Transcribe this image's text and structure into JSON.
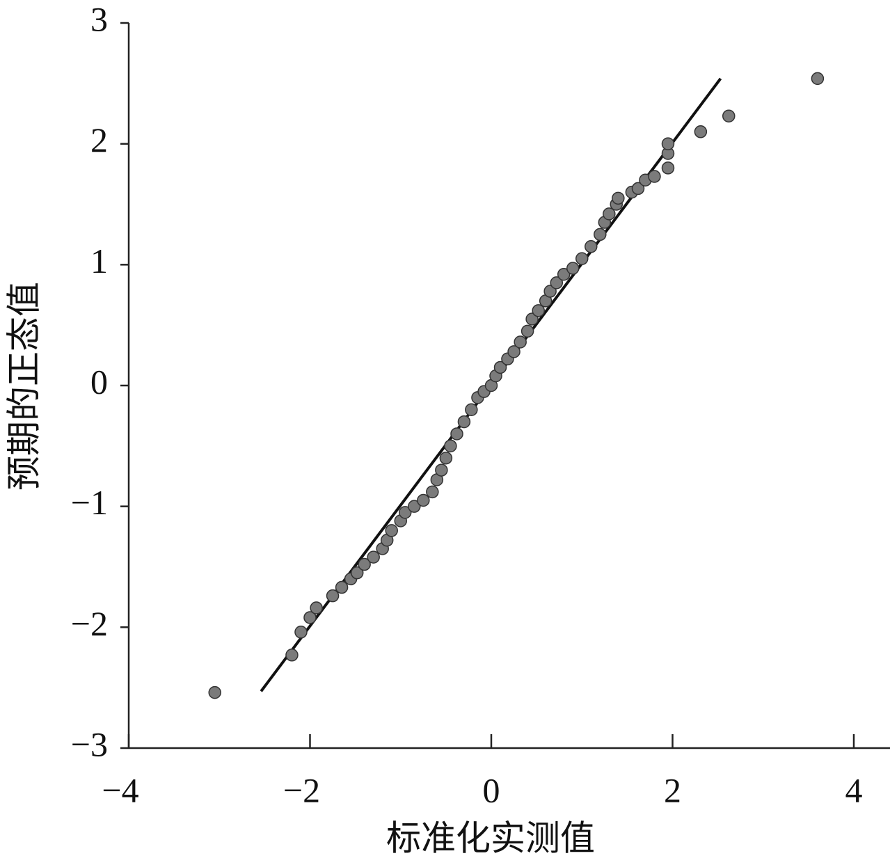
{
  "chart_data": {
    "type": "scatter",
    "x_label": "标准化实测值",
    "y_label": "预期的正态值",
    "xlim": [
      -4,
      4
    ],
    "ylim": [
      -3,
      3
    ],
    "xticks": [
      {
        "value": -4,
        "label": "−4"
      },
      {
        "value": -2,
        "label": "−2"
      },
      0,
      2,
      4
    ],
    "yticks": [
      {
        "value": -3,
        "label": "−3"
      },
      {
        "value": -2,
        "label": "−2"
      },
      {
        "value": -1,
        "label": "−1"
      },
      0,
      1,
      2,
      3
    ],
    "grid": false,
    "color": "#7b7b7b",
    "reference_line": {
      "x": [
        -2.54,
        2.53
      ],
      "y": [
        -2.53,
        2.54
      ],
      "color": "#111111"
    },
    "series": [
      {
        "color": "#7b7b7b",
        "x": [
          -3.05,
          -2.2,
          -2.1,
          -2.0,
          -1.93,
          -1.75,
          -1.65,
          -1.55,
          -1.48,
          -1.4,
          -1.3,
          -1.2,
          -1.15,
          -1.1,
          -1.0,
          -0.95,
          -0.85,
          -0.75,
          -0.65,
          -0.6,
          -0.55,
          -0.5,
          -0.45,
          -0.38,
          -0.3,
          -0.22,
          -0.15,
          -0.08,
          0.0,
          0.05,
          0.1,
          0.18,
          0.25,
          0.32,
          0.4,
          0.45,
          0.52,
          0.6,
          0.65,
          0.72,
          0.8,
          0.9,
          1.0,
          1.1,
          1.2,
          1.25,
          1.3,
          1.38,
          1.4,
          1.55,
          1.62,
          1.7,
          1.8,
          1.95,
          1.95,
          1.95,
          2.31,
          2.62,
          3.6
        ],
        "values": [
          -2.54,
          -2.23,
          -2.04,
          -1.92,
          -1.84,
          -1.74,
          -1.67,
          -1.6,
          -1.55,
          -1.48,
          -1.42,
          -1.35,
          -1.28,
          -1.2,
          -1.12,
          -1.05,
          -1.0,
          -0.95,
          -0.88,
          -0.78,
          -0.7,
          -0.6,
          -0.5,
          -0.4,
          -0.3,
          -0.2,
          -0.1,
          -0.05,
          0.0,
          0.08,
          0.15,
          0.22,
          0.28,
          0.36,
          0.45,
          0.55,
          0.62,
          0.7,
          0.78,
          0.85,
          0.92,
          0.97,
          1.05,
          1.15,
          1.25,
          1.35,
          1.42,
          1.5,
          1.55,
          1.6,
          1.63,
          1.7,
          1.73,
          1.8,
          1.92,
          2.0,
          2.1,
          2.23,
          2.54
        ]
      }
    ]
  }
}
